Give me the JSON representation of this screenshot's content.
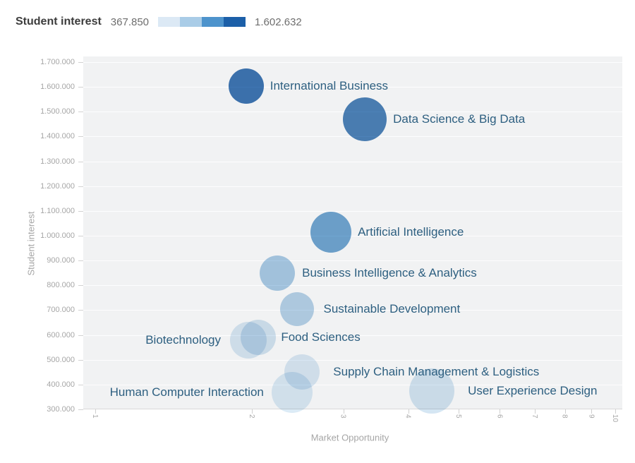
{
  "legend": {
    "title": "Student interest",
    "min_value_label": "367.850",
    "max_value_label": "1.602.632",
    "gradient_colors": [
      "#dce9f5",
      "#a9cce7",
      "#4d93cc",
      "#1c5fa8"
    ]
  },
  "chart_data": {
    "type": "scatter",
    "subtype": "bubble",
    "xlabel": "Market Opportunity",
    "ylabel": "Student interest",
    "x_scale": "log",
    "xlim": [
      1,
      10
    ],
    "ylim": [
      300000,
      1700000
    ],
    "grid": "horizontal",
    "x_tick_labels": [
      "1",
      "2",
      "3",
      "4",
      "5",
      "6",
      "7",
      "8",
      "9",
      "10"
    ],
    "y_tick_labels": [
      "1.700.000",
      "1.600.000",
      "1.500.000",
      "1.400.000",
      "1.300.000",
      "1.200.000",
      "1.100.000",
      "1.000.000",
      "900.000",
      "800.000",
      "700.000",
      "600.000",
      "500.000",
      "400.000",
      "300.000"
    ],
    "points": [
      {
        "label": "International Business",
        "market": 1.95,
        "interest": 1602632,
        "radius_px": 25,
        "color": "#3e76b4",
        "label_side": "right",
        "label_gap": 9
      },
      {
        "label": "Data Science & Big Data",
        "market": 3.3,
        "interest": 1470000,
        "radius_px": 31,
        "color": "#4d83b9",
        "label_side": "right",
        "label_gap": 9
      },
      {
        "label": "Artificial Intelligence",
        "market": 2.84,
        "interest": 1015000,
        "radius_px": 29,
        "color": "#71a7d2",
        "label_side": "right",
        "label_gap": 9
      },
      {
        "label": "Business Intelligence & Analytics",
        "market": 2.24,
        "interest": 850000,
        "radius_px": 25,
        "color": "#abcce6",
        "label_side": "right",
        "label_gap": 10
      },
      {
        "label": "Sustainable Development",
        "market": 2.44,
        "interest": 705000,
        "radius_px": 24,
        "color": "#b7d3e9",
        "label_side": "right",
        "label_gap": 14
      },
      {
        "label": "Food Sciences",
        "market": 2.06,
        "interest": 590000,
        "radius_px": 25,
        "color": "#d4e5f2",
        "label_side": "right",
        "label_gap": 7
      },
      {
        "label": "Biotechnology",
        "market": 1.97,
        "interest": 580000,
        "radius_px": 26,
        "color": "#d9e8f4",
        "label_side": "left",
        "label_gap": 13
      },
      {
        "label": "Supply Chain Management & Logistics",
        "market": 2.5,
        "interest": 450000,
        "radius_px": 25,
        "color": "#dbe9f5",
        "label_side": "right",
        "label_gap": 19
      },
      {
        "label": "Human Computer Interaction",
        "market": 2.39,
        "interest": 367850,
        "radius_px": 29,
        "color": "#dcebf6",
        "label_side": "left",
        "label_gap": 11
      },
      {
        "label": "User Experience Design",
        "market": 4.44,
        "interest": 374000,
        "radius_px": 32,
        "color": "#d5e6f3",
        "label_side": "right",
        "label_gap": 19
      }
    ]
  }
}
